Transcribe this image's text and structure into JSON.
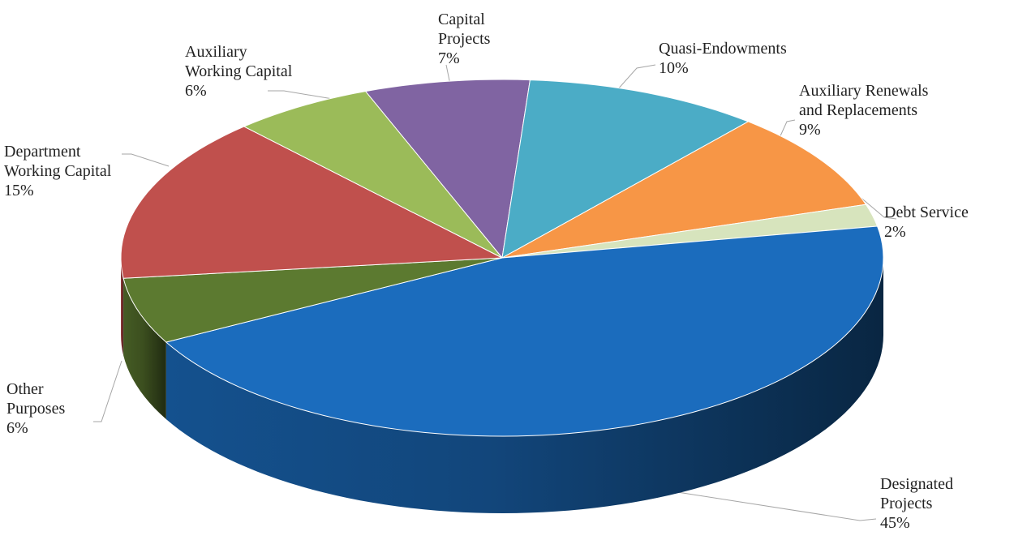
{
  "chart_data": {
    "type": "pie",
    "categories": [
      "Capital Projects",
      "Quasi-Endowments",
      "Auxiliary Renewals and Replacements",
      "Debt Service",
      "Designated Projects",
      "Other Purposes",
      "Department Working Capital",
      "Auxiliary Working Capital"
    ],
    "values": [
      7,
      10,
      9,
      2,
      45,
      6,
      15,
      6
    ],
    "value_labels": [
      "7%",
      "10%",
      "9%",
      "2%",
      "45%",
      "6%",
      "15%",
      "6%"
    ],
    "colors": [
      "#8064a2",
      "#4bacc6",
      "#f79646",
      "#d7e4bd",
      "#1b6cbd",
      "#5c7a30",
      "#c0504d",
      "#9bbb59"
    ]
  }
}
